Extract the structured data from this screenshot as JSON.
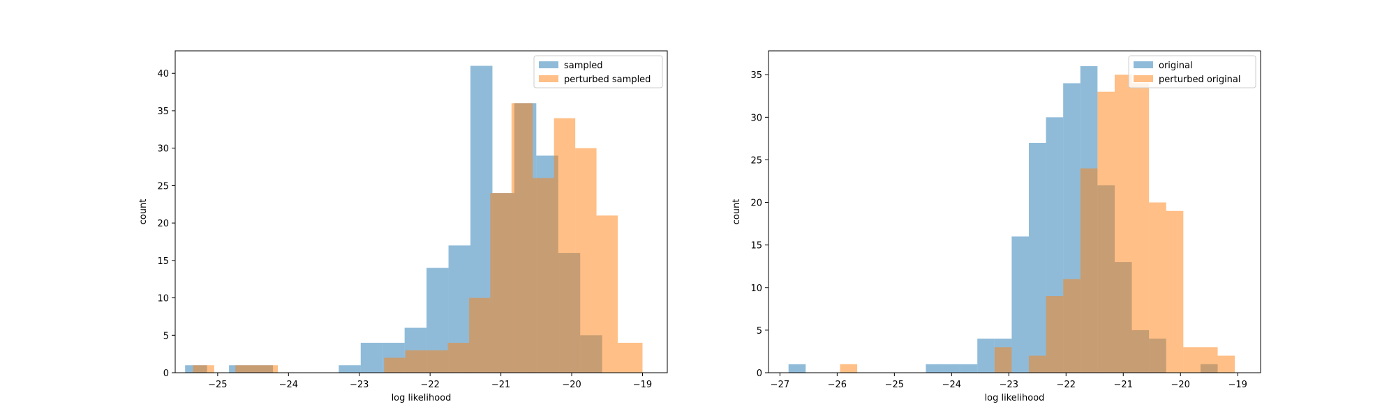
{
  "chart_data": [
    {
      "type": "histogram",
      "xlabel": "log likelihood",
      "ylabel": "count",
      "xlim": [
        -25.6,
        -18.65
      ],
      "ylim": [
        0,
        43
      ],
      "xticks": [
        -25,
        -24,
        -23,
        -22,
        -21,
        -20,
        -19
      ],
      "yticks": [
        0,
        5,
        10,
        15,
        20,
        25,
        30,
        35,
        40
      ],
      "legend": "top-right",
      "series": [
        {
          "name": "sampled",
          "color": "#1f77b4",
          "opacity": 0.5,
          "bin_edges": [
            -25.46,
            -25.15,
            -24.84,
            -24.53,
            -24.22,
            -23.91,
            -23.6,
            -23.29,
            -22.98,
            -22.67,
            -22.36,
            -22.05,
            -21.74,
            -21.43,
            -21.12,
            -20.81,
            -20.5,
            -20.19,
            -19.88,
            -19.57
          ],
          "counts": [
            1,
            0,
            1,
            1,
            0,
            0,
            0,
            1,
            4,
            4,
            6,
            14,
            17,
            41,
            24,
            36,
            29,
            16,
            5
          ]
        },
        {
          "name": "perturbed sampled",
          "color": "#ff7f0e",
          "opacity": 0.5,
          "bin_edges": [
            -25.35,
            -25.05,
            -24.75,
            -24.45,
            -24.15,
            -23.85,
            -23.55,
            -23.25,
            -22.95,
            -22.65,
            -22.35,
            -22.05,
            -21.75,
            -21.45,
            -21.15,
            -20.85,
            -20.55,
            -20.25,
            -19.95,
            -19.65,
            -19.35,
            -19.0
          ],
          "counts": [
            1,
            0,
            1,
            1,
            0,
            0,
            0,
            0,
            0,
            2,
            3,
            3,
            4,
            10,
            24,
            36,
            26,
            34,
            30,
            21,
            4
          ]
        }
      ]
    },
    {
      "type": "histogram",
      "xlabel": "log likelihood",
      "ylabel": "count",
      "xlim": [
        -27.2,
        -18.6
      ],
      "ylim": [
        0,
        37.8
      ],
      "xticks": [
        -27,
        -26,
        -25,
        -24,
        -23,
        -22,
        -21,
        -20,
        -19
      ],
      "yticks": [
        0,
        5,
        10,
        15,
        20,
        25,
        30,
        35
      ],
      "legend": "top-right",
      "series": [
        {
          "name": "original",
          "color": "#1f77b4",
          "opacity": 0.5,
          "bin_edges": [
            -26.85,
            -26.55,
            -26.25,
            -25.95,
            -25.65,
            -25.35,
            -25.05,
            -24.75,
            -24.45,
            -24.15,
            -23.85,
            -23.55,
            -23.25,
            -22.95,
            -22.65,
            -22.35,
            -22.05,
            -21.75,
            -21.45,
            -21.15,
            -20.85,
            -20.55,
            -20.25,
            -19.95,
            -19.65,
            -19.35
          ],
          "counts": [
            1,
            0,
            0,
            0,
            0,
            0,
            0,
            0,
            1,
            1,
            1,
            4,
            4,
            16,
            27,
            30,
            34,
            36,
            22,
            13,
            5,
            4,
            0,
            0,
            1
          ]
        },
        {
          "name": "perturbed original",
          "color": "#ff7f0e",
          "opacity": 0.5,
          "bin_edges": [
            -25.95,
            -25.65,
            -25.35,
            -25.05,
            -24.75,
            -24.45,
            -24.15,
            -23.85,
            -23.55,
            -23.25,
            -22.95,
            -22.65,
            -22.35,
            -22.05,
            -21.75,
            -21.45,
            -21.15,
            -20.85,
            -20.55,
            -20.25,
            -19.95,
            -19.65,
            -19.35,
            -19.05
          ],
          "counts": [
            1,
            0,
            0,
            0,
            0,
            0,
            0,
            0,
            0,
            3,
            0,
            2,
            9,
            11,
            24,
            33,
            35,
            34,
            20,
            19,
            3,
            3,
            2
          ]
        }
      ]
    }
  ]
}
